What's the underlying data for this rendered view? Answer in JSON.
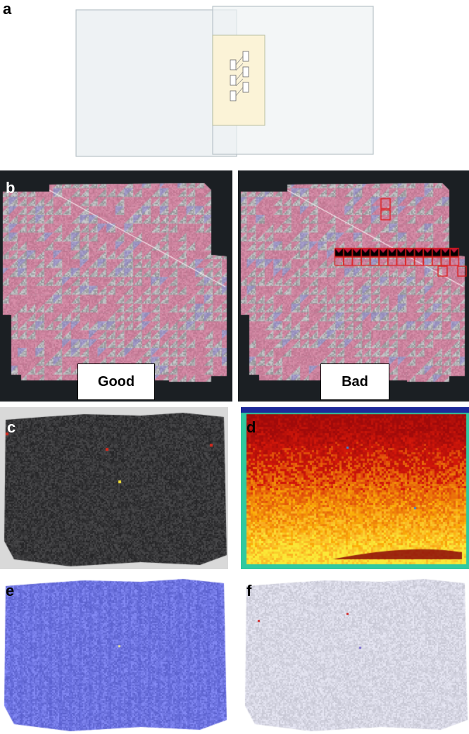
{
  "figure": {
    "panels": [
      {
        "letter": "a"
      },
      {
        "letter": "b",
        "labels": [
          "Good",
          "Bad"
        ]
      },
      {
        "letter": "c"
      },
      {
        "letter": "d"
      },
      {
        "letter": "e"
      },
      {
        "letter": "f"
      }
    ],
    "colors": {
      "tile_pink": "#e35c8c",
      "tile_purple": "#8e7fd0",
      "tile_gray": "#b3b3b3",
      "bad_outline": "#e01b1b",
      "dark_bg": "#1b1f23",
      "overlap_yellow": "#fbf3d7",
      "heat_low": "#2fc9a0",
      "heat_mid": "#f2a01a",
      "heat_high": "#9c0a0a",
      "blue_overlay": "#7277e6"
    }
  }
}
